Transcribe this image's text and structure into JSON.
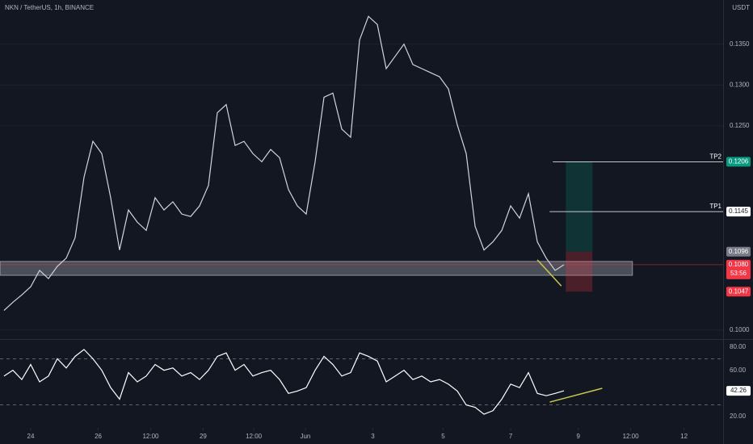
{
  "header": {
    "symbol": "NKN / TetherUS, 1h, BINANCE",
    "currency": "USDT"
  },
  "chart_data": [
    {
      "type": "line",
      "color": "#d1d4dc",
      "grid": true,
      "x": [
        0,
        1,
        2,
        3,
        4,
        5,
        6,
        7,
        8,
        9,
        10,
        11,
        12,
        13,
        14,
        15,
        16,
        17,
        18,
        19,
        20,
        21,
        22,
        23,
        24,
        25,
        26,
        27,
        28,
        29,
        30,
        31,
        32,
        33,
        34,
        35,
        36,
        37,
        38,
        39,
        40,
        41,
        42,
        43,
        44,
        45,
        46,
        47,
        48,
        49,
        50,
        51,
        52,
        53,
        54,
        55,
        56,
        57,
        58,
        59,
        60,
        61,
        62,
        63
      ],
      "values": [
        0.1024,
        0.1034,
        0.1043,
        0.1053,
        0.1073,
        0.1063,
        0.1078,
        0.1088,
        0.1113,
        0.1187,
        0.1231,
        0.1216,
        0.1162,
        0.1098,
        0.1147,
        0.1132,
        0.1122,
        0.1162,
        0.1147,
        0.1157,
        0.1142,
        0.1139,
        0.1152,
        0.1177,
        0.1266,
        0.1276,
        0.1226,
        0.1231,
        0.1216,
        0.1206,
        0.1221,
        0.1211,
        0.1172,
        0.1152,
        0.1142,
        0.1206,
        0.1285,
        0.129,
        0.1246,
        0.1236,
        0.1355,
        0.1384,
        0.1374,
        0.132,
        0.1335,
        0.135,
        0.1325,
        0.132,
        0.1315,
        0.131,
        0.1295,
        0.1251,
        0.1216,
        0.1127,
        0.1098,
        0.1108,
        0.1122,
        0.1152,
        0.1137,
        0.1167,
        0.1108,
        0.1088,
        0.1073,
        0.108
      ],
      "xlim": [
        -0.45,
        80.9
      ],
      "ylim": [
        0.0989,
        0.1404
      ],
      "yticks": [
        {
          "value": 0.1,
          "label": "0.1000"
        },
        {
          "value": 0.125,
          "label": "0.1250"
        },
        {
          "value": 0.13,
          "label": "0.1300"
        },
        {
          "value": 0.135,
          "label": "0.1350"
        }
      ],
      "zone": {
        "low": 0.1067,
        "high": 0.1084,
        "x_end": 70.7,
        "color": "#b2b5be"
      },
      "targets": [
        {
          "label": "TP2",
          "value": 0.1206
        },
        {
          "label": "TP1",
          "value": 0.1145
        }
      ],
      "trade": {
        "entry": 0.1096,
        "target": 0.1206,
        "stop": 0.1047,
        "x": [
          63.2,
          66.2
        ]
      },
      "current_line": 0.108,
      "price_labels": [
        {
          "value": 0.1206,
          "label": "0.1206",
          "color": "#089981"
        },
        {
          "value": 0.1145,
          "label": "0.1145",
          "color": "#ffffff"
        },
        {
          "value": 0.1096,
          "label": "0.1096",
          "color": "#787b86"
        },
        {
          "value": 0.108,
          "label": "0.1080",
          "color": "#f23645",
          "countdown": "53:56"
        },
        {
          "value": 0.1047,
          "label": "0.1047",
          "color": "#f23645"
        }
      ],
      "trendline": {
        "x": [
          60,
          62.7
        ],
        "y": [
          0.1086,
          0.1054
        ],
        "color": "#c8c84a"
      }
    },
    {
      "type": "line",
      "color": "#ffffff",
      "x": [
        0,
        1,
        2,
        3,
        4,
        5,
        6,
        7,
        8,
        9,
        10,
        11,
        12,
        13,
        14,
        15,
        16,
        17,
        18,
        19,
        20,
        21,
        22,
        23,
        24,
        25,
        26,
        27,
        28,
        29,
        30,
        31,
        32,
        33,
        34,
        35,
        36,
        37,
        38,
        39,
        40,
        41,
        42,
        43,
        44,
        45,
        46,
        47,
        48,
        49,
        50,
        51,
        52,
        53,
        54,
        55,
        56,
        57,
        58,
        59,
        60,
        61,
        62,
        63
      ],
      "values": [
        55,
        60,
        52,
        65,
        50,
        55,
        70,
        62,
        72,
        78,
        70,
        60,
        45,
        35,
        58,
        50,
        55,
        65,
        60,
        62,
        55,
        58,
        52,
        60,
        72,
        75,
        60,
        65,
        55,
        58,
        60,
        52,
        40,
        42,
        45,
        60,
        72,
        65,
        55,
        58,
        75,
        72,
        68,
        50,
        55,
        60,
        52,
        55,
        50,
        52,
        48,
        42,
        30,
        28,
        22,
        25,
        35,
        48,
        45,
        58,
        40,
        38,
        40,
        42.26
      ],
      "xlim": [
        -0.45,
        80.9
      ],
      "ylim": [
        10.2,
        87
      ],
      "yticks": [
        {
          "value": 80,
          "label": "80.00"
        },
        {
          "value": 60,
          "label": "60.00"
        },
        {
          "value": 20,
          "label": "20.00"
        }
      ],
      "bands": [
        70,
        30
      ],
      "last_label": {
        "value": 42.26,
        "label": "42.26"
      },
      "trendline": {
        "x": [
          61.4,
          67.3
        ],
        "y": [
          32.5,
          44.4
        ],
        "color": "#c8c84a"
      },
      "xticks": [
        {
          "value": 3,
          "label": "24"
        },
        {
          "value": 10.6,
          "label": "26"
        },
        {
          "value": 16.5,
          "label": "12:00"
        },
        {
          "value": 22.4,
          "label": "29"
        },
        {
          "value": 28.1,
          "label": "12:00"
        },
        {
          "value": 33.9,
          "label": "Jun"
        },
        {
          "value": 41.5,
          "label": "3"
        },
        {
          "value": 49.4,
          "label": "5"
        },
        {
          "value": 57,
          "label": "7"
        },
        {
          "value": 64.6,
          "label": "9"
        },
        {
          "value": 70.5,
          "label": "12:00"
        },
        {
          "value": 76.5,
          "label": "12"
        }
      ]
    }
  ]
}
